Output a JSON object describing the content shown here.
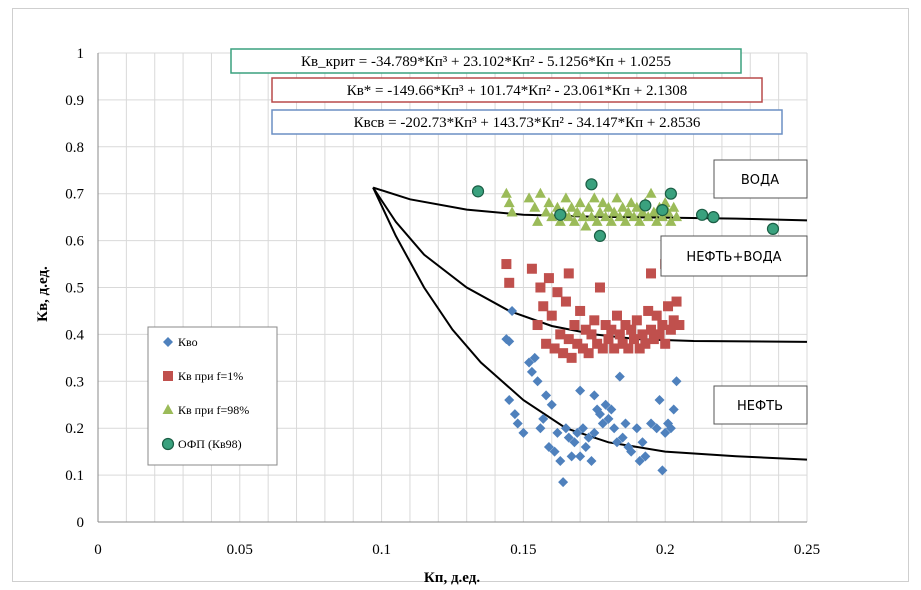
{
  "chart_data": {
    "type": "scatter",
    "title": "",
    "xlabel": "Кп, д.ед.",
    "ylabel": "Кв, д.ед.",
    "xlim": [
      0,
      0.25
    ],
    "ylim": [
      0,
      1
    ],
    "x_ticks": [
      "0",
      "0.05",
      "0.1",
      "0.15",
      "0.2",
      "0.25"
    ],
    "y_ticks": [
      "0",
      "0.1",
      "0.2",
      "0.3",
      "0.4",
      "0.5",
      "0.6",
      "0.7",
      "0.8",
      "0.9",
      "1"
    ],
    "grid": true,
    "legend_position": "left",
    "equations": [
      {
        "text": "Кв_крит = -34.789*Кп³ + 23.102*Кп² - 5.1256*Кп + 1.0255",
        "color": "#3aa17e"
      },
      {
        "text": "Кв* = -149.66*Кп³ + 101.74*Кп² - 23.061*Кп + 2.1308",
        "color": "#b84a4a"
      },
      {
        "text": "Квсв = -202.73*Кп³ + 143.73*Кп² - 34.147*Кп + 2.8536",
        "color": "#6b8fc4"
      }
    ],
    "zones": [
      "ВОДА",
      "НЕФТЬ+ВОДА",
      "НЕФТЬ"
    ],
    "curves": [
      {
        "points": [
          [
            0.097,
            0.713
          ],
          [
            0.11,
            0.688
          ],
          [
            0.13,
            0.666
          ],
          [
            0.15,
            0.655
          ],
          [
            0.175,
            0.651
          ],
          [
            0.2,
            0.649
          ],
          [
            0.225,
            0.647
          ],
          [
            0.25,
            0.643
          ]
        ]
      },
      {
        "points": [
          [
            0.097,
            0.713
          ],
          [
            0.105,
            0.64
          ],
          [
            0.115,
            0.57
          ],
          [
            0.13,
            0.5
          ],
          [
            0.145,
            0.45
          ],
          [
            0.16,
            0.418
          ],
          [
            0.175,
            0.4
          ],
          [
            0.19,
            0.39
          ],
          [
            0.21,
            0.386
          ],
          [
            0.25,
            0.384
          ]
        ]
      },
      {
        "points": [
          [
            0.097,
            0.713
          ],
          [
            0.105,
            0.61
          ],
          [
            0.115,
            0.5
          ],
          [
            0.125,
            0.41
          ],
          [
            0.135,
            0.34
          ],
          [
            0.15,
            0.26
          ],
          [
            0.165,
            0.2
          ],
          [
            0.18,
            0.17
          ],
          [
            0.2,
            0.15
          ],
          [
            0.225,
            0.14
          ],
          [
            0.25,
            0.133
          ]
        ]
      }
    ],
    "series": [
      {
        "name": "Кво",
        "marker": "diamond",
        "color": "#4f81bd",
        "points": [
          [
            0.144,
            0.39
          ],
          [
            0.145,
            0.385
          ],
          [
            0.146,
            0.45
          ],
          [
            0.145,
            0.26
          ],
          [
            0.147,
            0.23
          ],
          [
            0.148,
            0.21
          ],
          [
            0.15,
            0.19
          ],
          [
            0.152,
            0.34
          ],
          [
            0.153,
            0.32
          ],
          [
            0.154,
            0.35
          ],
          [
            0.155,
            0.3
          ],
          [
            0.156,
            0.2
          ],
          [
            0.157,
            0.22
          ],
          [
            0.158,
            0.27
          ],
          [
            0.159,
            0.16
          ],
          [
            0.16,
            0.25
          ],
          [
            0.161,
            0.15
          ],
          [
            0.162,
            0.19
          ],
          [
            0.163,
            0.13
          ],
          [
            0.164,
            0.085
          ],
          [
            0.165,
            0.2
          ],
          [
            0.166,
            0.18
          ],
          [
            0.167,
            0.14
          ],
          [
            0.168,
            0.17
          ],
          [
            0.169,
            0.19
          ],
          [
            0.17,
            0.14
          ],
          [
            0.171,
            0.2
          ],
          [
            0.172,
            0.16
          ],
          [
            0.173,
            0.18
          ],
          [
            0.174,
            0.13
          ],
          [
            0.175,
            0.19
          ],
          [
            0.176,
            0.24
          ],
          [
            0.177,
            0.23
          ],
          [
            0.178,
            0.21
          ],
          [
            0.179,
            0.25
          ],
          [
            0.18,
            0.22
          ],
          [
            0.181,
            0.24
          ],
          [
            0.182,
            0.2
          ],
          [
            0.183,
            0.17
          ],
          [
            0.184,
            0.31
          ],
          [
            0.185,
            0.18
          ],
          [
            0.186,
            0.21
          ],
          [
            0.187,
            0.16
          ],
          [
            0.188,
            0.15
          ],
          [
            0.19,
            0.2
          ],
          [
            0.191,
            0.13
          ],
          [
            0.192,
            0.17
          ],
          [
            0.193,
            0.14
          ],
          [
            0.195,
            0.21
          ],
          [
            0.197,
            0.2
          ],
          [
            0.198,
            0.26
          ],
          [
            0.199,
            0.11
          ],
          [
            0.2,
            0.19
          ],
          [
            0.201,
            0.21
          ],
          [
            0.202,
            0.2
          ],
          [
            0.203,
            0.24
          ],
          [
            0.204,
            0.3
          ],
          [
            0.17,
            0.28
          ],
          [
            0.175,
            0.27
          ]
        ]
      },
      {
        "name": "Кв при f=1%",
        "marker": "square",
        "color": "#c0504d",
        "points": [
          [
            0.144,
            0.55
          ],
          [
            0.145,
            0.51
          ],
          [
            0.153,
            0.54
          ],
          [
            0.155,
            0.42
          ],
          [
            0.156,
            0.5
          ],
          [
            0.157,
            0.46
          ],
          [
            0.158,
            0.38
          ],
          [
            0.159,
            0.52
          ],
          [
            0.16,
            0.44
          ],
          [
            0.161,
            0.37
          ],
          [
            0.162,
            0.49
          ],
          [
            0.163,
            0.4
          ],
          [
            0.164,
            0.36
          ],
          [
            0.165,
            0.47
          ],
          [
            0.166,
            0.39
          ],
          [
            0.167,
            0.35
          ],
          [
            0.168,
            0.42
          ],
          [
            0.169,
            0.38
          ],
          [
            0.17,
            0.45
          ],
          [
            0.171,
            0.37
          ],
          [
            0.172,
            0.41
          ],
          [
            0.173,
            0.36
          ],
          [
            0.174,
            0.4
          ],
          [
            0.175,
            0.43
          ],
          [
            0.176,
            0.38
          ],
          [
            0.177,
            0.5
          ],
          [
            0.178,
            0.37
          ],
          [
            0.179,
            0.42
          ],
          [
            0.18,
            0.39
          ],
          [
            0.181,
            0.41
          ],
          [
            0.182,
            0.37
          ],
          [
            0.183,
            0.44
          ],
          [
            0.184,
            0.4
          ],
          [
            0.185,
            0.38
          ],
          [
            0.186,
            0.42
          ],
          [
            0.187,
            0.37
          ],
          [
            0.188,
            0.41
          ],
          [
            0.189,
            0.39
          ],
          [
            0.19,
            0.43
          ],
          [
            0.191,
            0.37
          ],
          [
            0.192,
            0.4
          ],
          [
            0.193,
            0.38
          ],
          [
            0.194,
            0.45
          ],
          [
            0.195,
            0.41
          ],
          [
            0.196,
            0.39
          ],
          [
            0.197,
            0.44
          ],
          [
            0.198,
            0.4
          ],
          [
            0.199,
            0.42
          ],
          [
            0.2,
            0.38
          ],
          [
            0.201,
            0.46
          ],
          [
            0.202,
            0.41
          ],
          [
            0.203,
            0.43
          ],
          [
            0.204,
            0.47
          ],
          [
            0.205,
            0.42
          ],
          [
            0.195,
            0.53
          ],
          [
            0.2,
            0.55
          ],
          [
            0.166,
            0.53
          ]
        ]
      },
      {
        "name": "Кв при f=98%",
        "marker": "triangle",
        "color": "#9bbb59",
        "points": [
          [
            0.144,
            0.7
          ],
          [
            0.145,
            0.68
          ],
          [
            0.146,
            0.66
          ],
          [
            0.152,
            0.69
          ],
          [
            0.154,
            0.67
          ],
          [
            0.155,
            0.64
          ],
          [
            0.156,
            0.7
          ],
          [
            0.158,
            0.66
          ],
          [
            0.159,
            0.68
          ],
          [
            0.16,
            0.65
          ],
          [
            0.162,
            0.67
          ],
          [
            0.163,
            0.64
          ],
          [
            0.164,
            0.66
          ],
          [
            0.165,
            0.69
          ],
          [
            0.166,
            0.65
          ],
          [
            0.167,
            0.67
          ],
          [
            0.168,
            0.64
          ],
          [
            0.169,
            0.66
          ],
          [
            0.17,
            0.68
          ],
          [
            0.171,
            0.65
          ],
          [
            0.172,
            0.63
          ],
          [
            0.173,
            0.67
          ],
          [
            0.174,
            0.65
          ],
          [
            0.175,
            0.69
          ],
          [
            0.176,
            0.64
          ],
          [
            0.177,
            0.66
          ],
          [
            0.178,
            0.68
          ],
          [
            0.179,
            0.65
          ],
          [
            0.18,
            0.67
          ],
          [
            0.181,
            0.64
          ],
          [
            0.182,
            0.66
          ],
          [
            0.183,
            0.69
          ],
          [
            0.184,
            0.65
          ],
          [
            0.185,
            0.67
          ],
          [
            0.186,
            0.64
          ],
          [
            0.187,
            0.66
          ],
          [
            0.188,
            0.68
          ],
          [
            0.189,
            0.65
          ],
          [
            0.19,
            0.67
          ],
          [
            0.191,
            0.64
          ],
          [
            0.192,
            0.66
          ],
          [
            0.193,
            0.68
          ],
          [
            0.194,
            0.65
          ],
          [
            0.195,
            0.7
          ],
          [
            0.196,
            0.66
          ],
          [
            0.197,
            0.64
          ],
          [
            0.198,
            0.67
          ],
          [
            0.199,
            0.65
          ],
          [
            0.2,
            0.68
          ],
          [
            0.201,
            0.66
          ],
          [
            0.202,
            0.64
          ],
          [
            0.203,
            0.67
          ],
          [
            0.204,
            0.65
          ]
        ]
      },
      {
        "name": "ОФП (Кв98)",
        "marker": "circle",
        "color": "#3aa17e",
        "points": [
          [
            0.134,
            0.705
          ],
          [
            0.163,
            0.655
          ],
          [
            0.174,
            0.72
          ],
          [
            0.177,
            0.61
          ],
          [
            0.193,
            0.675
          ],
          [
            0.199,
            0.665
          ],
          [
            0.202,
            0.7
          ],
          [
            0.213,
            0.655
          ],
          [
            0.217,
            0.65
          ],
          [
            0.238,
            0.625
          ]
        ]
      }
    ]
  }
}
